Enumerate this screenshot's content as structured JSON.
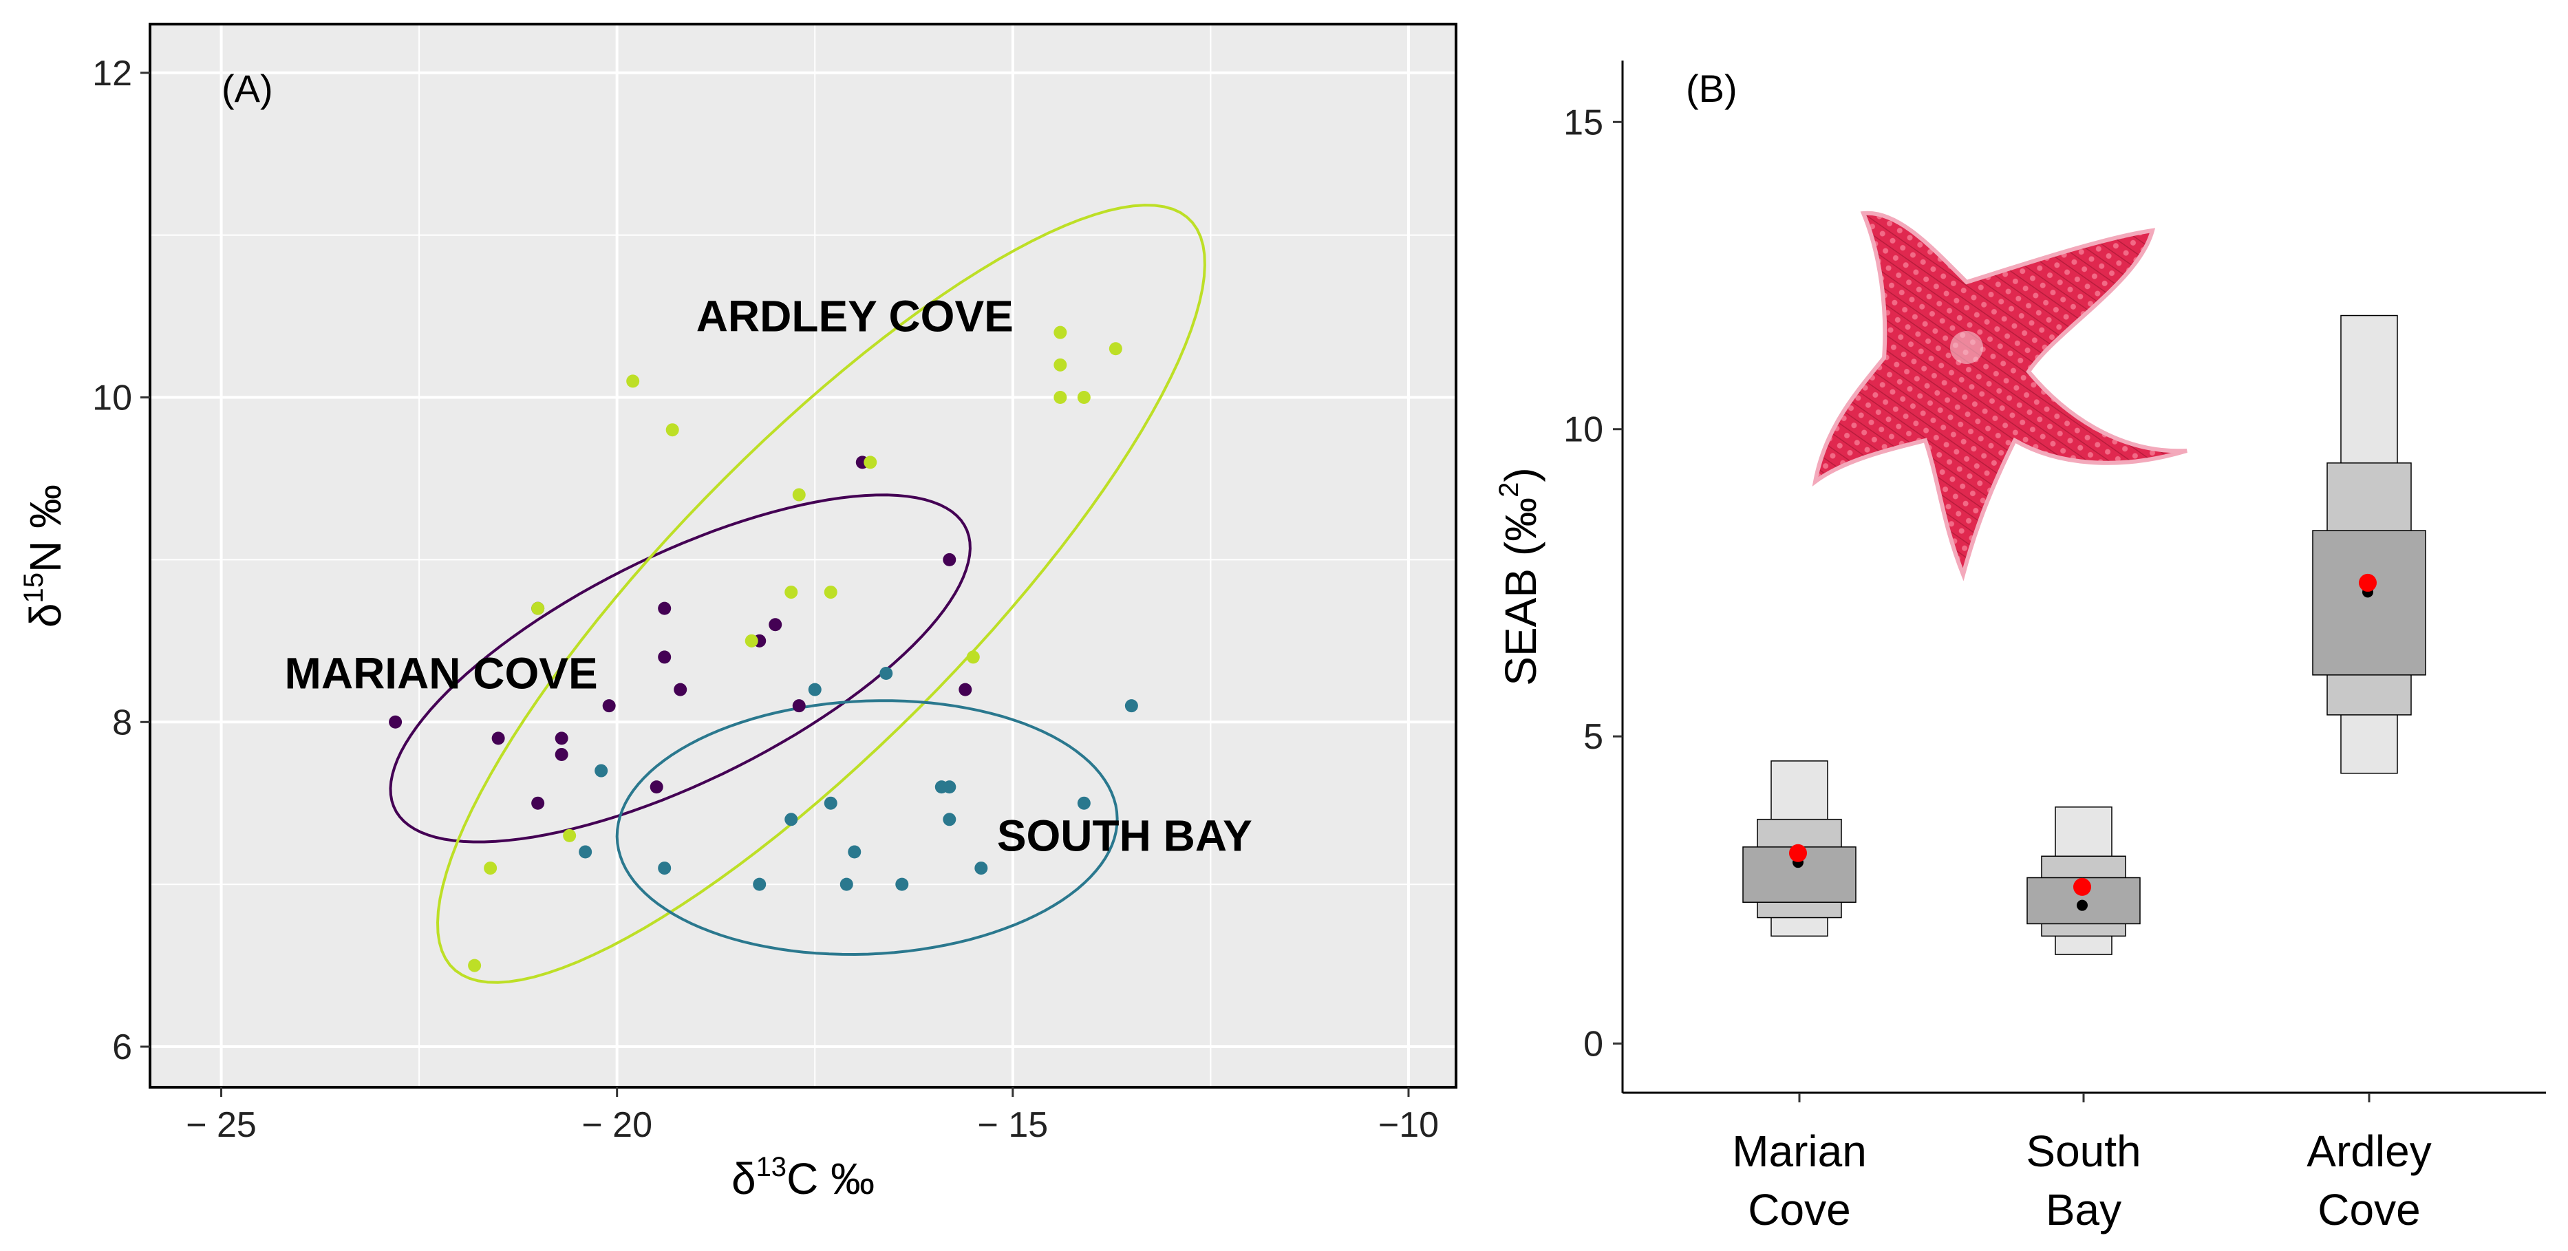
{
  "chart_data": [
    {
      "type": "scatter",
      "panel_label": "(A)",
      "xlabel_main": "δ",
      "xlabel_sup": "13",
      "xlabel_rest": "C ‰",
      "ylabel_main": "δ",
      "ylabel_sup": "15",
      "ylabel_rest": "N ‰",
      "xlim": [
        -25.9,
        -9.4
      ],
      "ylim": [
        5.75,
        12.3
      ],
      "xticks": [
        -25,
        -20,
        -15,
        -10
      ],
      "xtick_labels": [
        "− 25",
        "− 20",
        "− 15",
        "−10"
      ],
      "yticks": [
        6,
        8,
        10,
        12
      ],
      "ytick_labels": [
        "6",
        "8",
        "10",
        "12"
      ],
      "grid": true,
      "series": [
        {
          "name": "MARIAN COVE",
          "color": "#440154",
          "label_pos": [
            -24.2,
            8.3
          ],
          "ellipse": {
            "cx": -19.2,
            "cy": 8.33,
            "a": 3.74,
            "b": 0.75,
            "angle_deg": 12
          },
          "points": [
            [
              -22.8,
              8.0
            ],
            [
              -21.5,
              7.9
            ],
            [
              -21.0,
              8.7
            ],
            [
              -21.0,
              7.5
            ],
            [
              -20.7,
              7.9
            ],
            [
              -20.7,
              7.8
            ],
            [
              -20.1,
              8.1
            ],
            [
              -19.5,
              7.6
            ],
            [
              -19.4,
              8.7
            ],
            [
              -19.4,
              8.4
            ],
            [
              -19.2,
              8.2
            ],
            [
              -18.2,
              8.5
            ],
            [
              -18.0,
              8.6
            ],
            [
              -17.7,
              8.1
            ],
            [
              -16.9,
              9.6
            ],
            [
              -15.8,
              9.0
            ],
            [
              -15.6,
              8.2
            ]
          ]
        },
        {
          "name": "ARDLEY COVE",
          "color": "#bddf26",
          "label_pos": [
            -19.0,
            10.5
          ],
          "ellipse": {
            "cx": -17.42,
            "cy": 8.79,
            "a": 5.28,
            "b": 1.16,
            "angle_deg": 24
          },
          "points": [
            [
              -21.8,
              6.5
            ],
            [
              -21.6,
              7.1
            ],
            [
              -21.0,
              8.7
            ],
            [
              -20.6,
              7.3
            ],
            [
              -19.8,
              10.1
            ],
            [
              -19.3,
              9.8
            ],
            [
              -18.3,
              8.5
            ],
            [
              -17.8,
              8.8
            ],
            [
              -17.7,
              9.4
            ],
            [
              -17.3,
              8.8
            ],
            [
              -16.8,
              9.6
            ],
            [
              -15.5,
              8.4
            ],
            [
              -14.4,
              10.4
            ],
            [
              -14.4,
              10.2
            ],
            [
              -14.4,
              10.0
            ],
            [
              -14.1,
              10.0
            ],
            [
              -13.7,
              10.3
            ]
          ]
        },
        {
          "name": "SOUTH BAY",
          "color": "#2a788e",
          "label_pos": [
            -15.2,
            7.3
          ],
          "ellipse": {
            "cx": -16.84,
            "cy": 7.35,
            "a": 3.16,
            "b": 0.78,
            "angle_deg": 1
          },
          "points": [
            [
              -20.4,
              7.2
            ],
            [
              -20.2,
              7.7
            ],
            [
              -19.4,
              7.1
            ],
            [
              -18.2,
              7.0
            ],
            [
              -17.8,
              7.4
            ],
            [
              -17.5,
              8.2
            ],
            [
              -17.3,
              7.5
            ],
            [
              -17.1,
              7.0
            ],
            [
              -17.0,
              7.2
            ],
            [
              -16.6,
              8.3
            ],
            [
              -16.4,
              7.0
            ],
            [
              -15.9,
              7.6
            ],
            [
              -15.8,
              7.6
            ],
            [
              -15.8,
              7.4
            ],
            [
              -15.4,
              7.1
            ],
            [
              -14.1,
              7.5
            ],
            [
              -13.5,
              8.1
            ]
          ]
        }
      ]
    },
    {
      "type": "box",
      "panel_label": "(B)",
      "ylabel_main": "SEAB (‰",
      "ylabel_sup": "2",
      "ylabel_rest": ")",
      "ylim": [
        -0.8,
        16.0
      ],
      "yticks": [
        0,
        5,
        10,
        15
      ],
      "ytick_labels": [
        "0",
        "5",
        "10",
        "15"
      ],
      "categories": [
        {
          "line1": "Marian",
          "line2": "Cove"
        },
        {
          "line1": "South",
          "line2": "Bay"
        },
        {
          "line1": "Ardley",
          "line2": "Cove"
        }
      ],
      "intervals": [
        {
          "c99": [
            1.75,
            4.6
          ],
          "c95": [
            2.05,
            3.65
          ],
          "c50": [
            2.3,
            3.2
          ],
          "mode": 2.95,
          "mean": 3.1
        },
        {
          "c99": [
            1.45,
            3.85
          ],
          "c95": [
            1.75,
            3.05
          ],
          "c50": [
            1.95,
            2.7
          ],
          "mode": 2.25,
          "mean": 2.55
        },
        {
          "c99": [
            4.4,
            11.85
          ],
          "c95": [
            5.35,
            9.45
          ],
          "c50": [
            6.0,
            8.35
          ],
          "mode": 7.35,
          "mean": 7.5
        }
      ],
      "box_colors": {
        "c99": "#e6e6e6",
        "c95": "#c8c8c8",
        "c50": "#a9a9a9",
        "mode": "#000000",
        "mean": "#ff0000"
      }
    }
  ]
}
